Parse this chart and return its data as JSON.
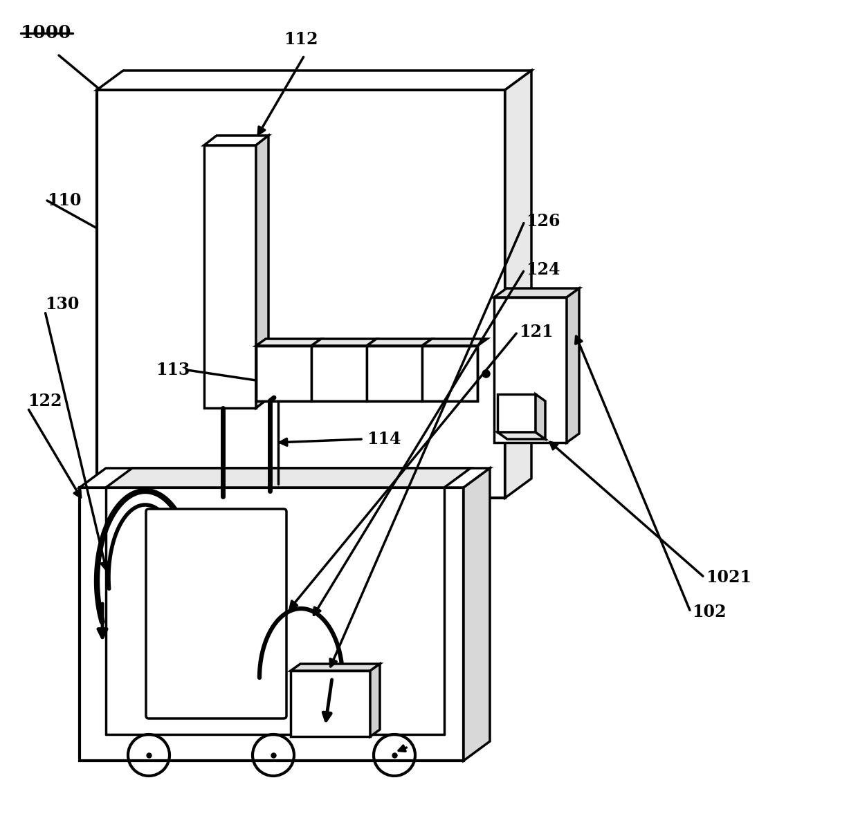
{
  "bg_color": "#ffffff",
  "line_color": "#000000",
  "lw": 2.5,
  "lw_thick": 5.0,
  "lw_thin": 1.8,
  "fs": 17,
  "fig_w": 12.4,
  "fig_h": 11.8
}
